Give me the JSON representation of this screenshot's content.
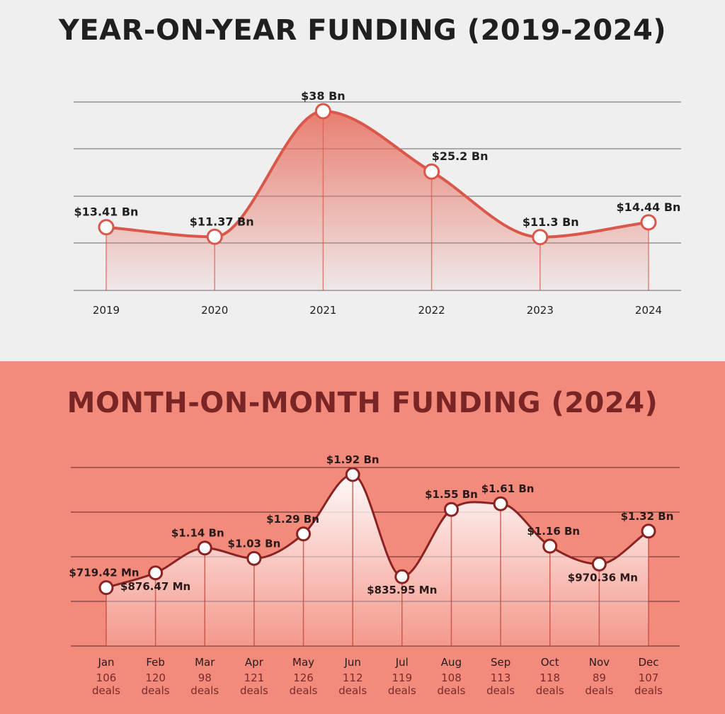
{
  "colors": {
    "yoy_background": "#efefef",
    "yoy_line": "#d9584b",
    "yoy_fill": "#e86a5a",
    "mom_background": "#f28b7c",
    "mom_line": "#8b2323",
    "grid": "#555555",
    "marker_fill": "#ffffff"
  },
  "chart_data": [
    {
      "id": "yoy",
      "type": "area",
      "title": "YEAR-ON-YEAR FUNDING (2019-2024)",
      "xlabel": "",
      "ylabel": "",
      "grid": true,
      "categories": [
        "2019",
        "2020",
        "2021",
        "2022",
        "2023",
        "2024"
      ],
      "values": [
        13.41,
        11.37,
        38,
        25.2,
        11.3,
        14.44
      ],
      "unit": "$ Bn",
      "value_labels": [
        "$13.41 Bn",
        "$11.37 Bn",
        "$38 Bn",
        "$25.2 Bn",
        "$11.3 Bn",
        "$14.44 Bn"
      ]
    },
    {
      "id": "mom",
      "type": "area",
      "title": "MONTH-ON-MONTH FUNDING (2024)",
      "xlabel": "",
      "ylabel": "",
      "grid": true,
      "categories": [
        "Jan",
        "Feb",
        "Mar",
        "Apr",
        "May",
        "Jun",
        "Jul",
        "Aug",
        "Sep",
        "Oct",
        "Nov",
        "Dec"
      ],
      "values": [
        0.71942,
        0.87647,
        1.14,
        1.03,
        1.29,
        1.92,
        0.83595,
        1.55,
        1.61,
        1.16,
        0.97036,
        1.32
      ],
      "unit": "$ Bn",
      "value_labels": [
        "$719.42 Mn",
        "$876.47 Mn",
        "$1.14 Bn",
        "$1.03 Bn",
        "$1.29 Bn",
        "$1.92 Bn",
        "$835.95 Mn",
        "$1.55 Bn",
        "$1.61 Bn",
        "$1.16 Bn",
        "$970.36 Mn",
        "$1.32 Bn"
      ],
      "deals": [
        106,
        120,
        98,
        121,
        126,
        112,
        119,
        108,
        113,
        118,
        89,
        107
      ],
      "deals_label": "deals"
    }
  ]
}
